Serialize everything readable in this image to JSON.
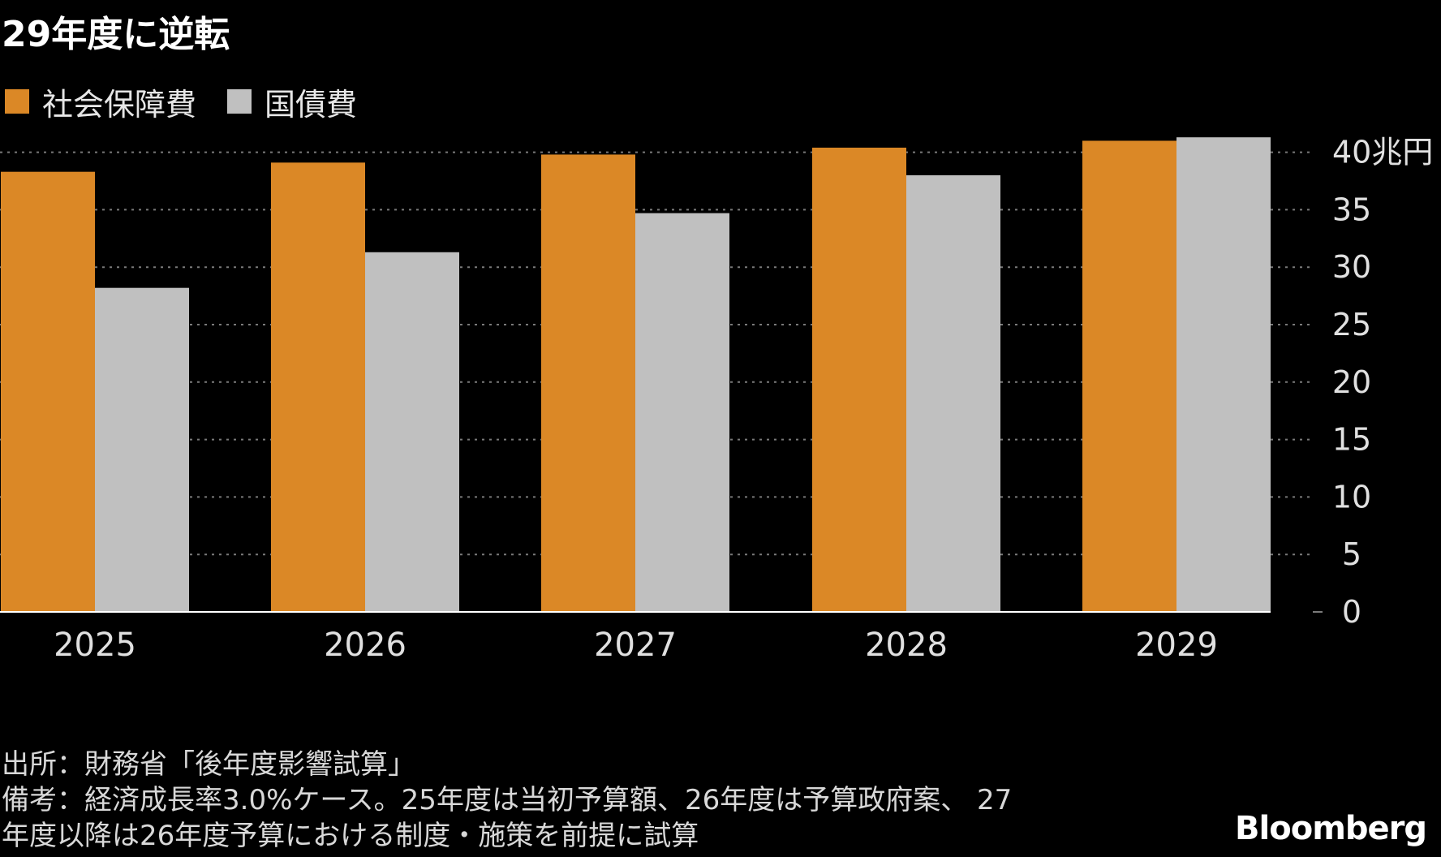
{
  "title": "29年度に逆転",
  "legend": [
    {
      "label": "社会保障費",
      "color": "#DB8826"
    },
    {
      "label": "国債費",
      "color": "#C0C0C0"
    }
  ],
  "footer": {
    "source": "出所：財務省「後年度影響試算」",
    "note_line1": "備考：経済成長率3.0%ケース。25年度は当初予算額、26年度は予算政府案、 27",
    "note_line2": "年度以降は26年度予算における制度・施策を前提に試算"
  },
  "brand": "Bloomberg",
  "chart_data": {
    "type": "bar",
    "categories": [
      "2025",
      "2026",
      "2027",
      "2028",
      "2029"
    ],
    "series": [
      {
        "name": "社会保障費",
        "color": "#DB8826",
        "values": [
          38.3,
          39.1,
          39.8,
          40.4,
          41.0
        ]
      },
      {
        "name": "国債費",
        "color": "#C0C0C0",
        "values": [
          28.2,
          31.3,
          34.7,
          38.0,
          41.3
        ]
      }
    ],
    "yticks": [
      0,
      5,
      10,
      15,
      20,
      25,
      30,
      35,
      40
    ],
    "ytick_labels": [
      "0",
      "5",
      "10",
      "15",
      "20",
      "25",
      "30",
      "35",
      "40兆円"
    ],
    "ylim": [
      0,
      41.5
    ],
    "grid": true,
    "legend_position": "top-left",
    "yaxis_side": "right"
  }
}
